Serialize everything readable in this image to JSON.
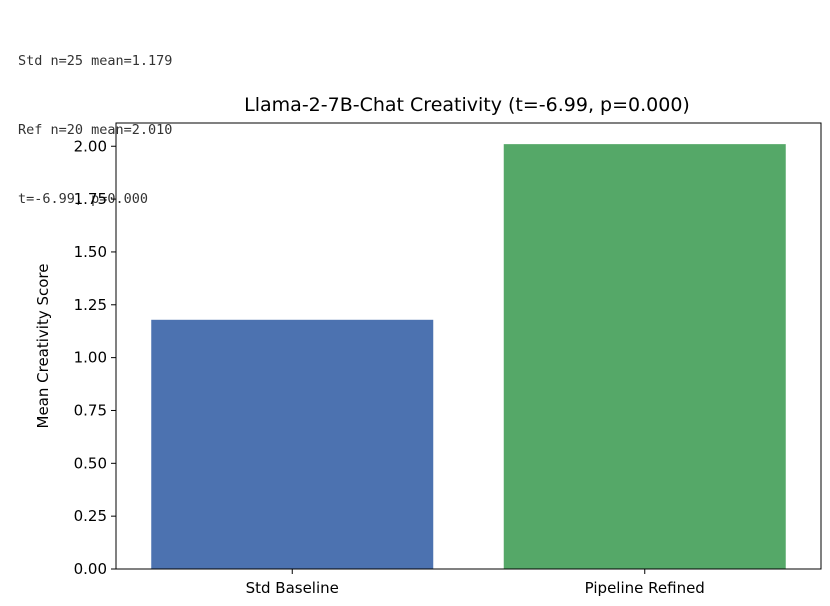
{
  "console": {
    "lines": [
      "Std n=25 mean=1.179",
      "Ref n=20 mean=2.010",
      "t=-6.99, p=0.000"
    ]
  },
  "chart_data": {
    "type": "bar",
    "title": "Llama-2-7B-Chat Creativity (t=-6.99, p=0.000)",
    "xlabel": "",
    "ylabel": "Mean Creativity Score",
    "categories": [
      "Std Baseline",
      "Pipeline Refined"
    ],
    "values": [
      1.179,
      2.01
    ],
    "colors": [
      "#4c72b0",
      "#55a868"
    ],
    "ylim": [
      0,
      2.11
    ],
    "yticks": [
      0,
      0.25,
      0.5,
      0.75,
      1.0,
      1.25,
      1.5,
      1.75,
      2.0
    ],
    "ytick_labels": [
      "0.00",
      "0.25",
      "0.50",
      "0.75",
      "1.00",
      "1.25",
      "1.50",
      "1.75",
      "2.00"
    ],
    "grid": false,
    "legend": "none"
  }
}
